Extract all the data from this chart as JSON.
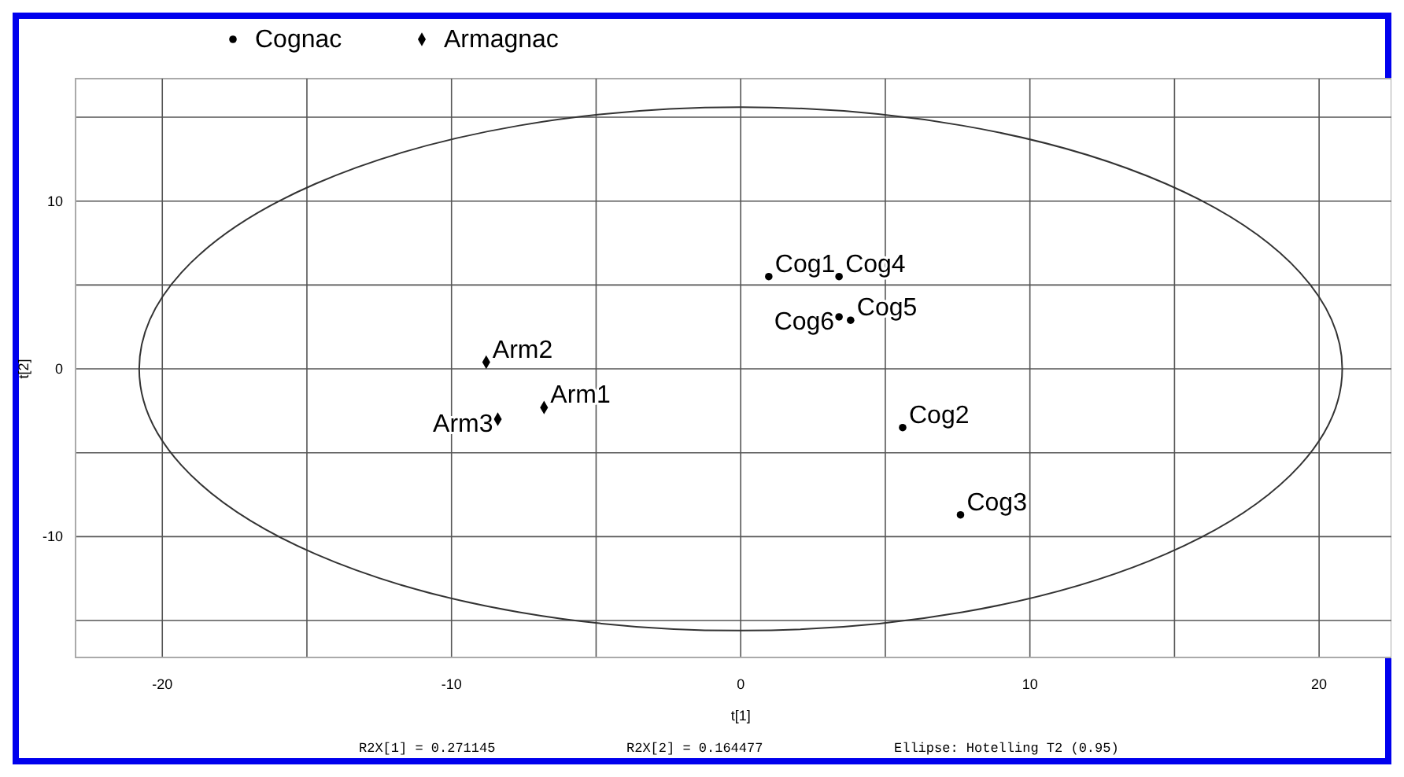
{
  "chart_data": {
    "type": "scatter",
    "xlabel": "t[1]",
    "ylabel": "t[2]",
    "xlim": [
      -23,
      22.5
    ],
    "ylim": [
      -17.2,
      17.3
    ],
    "xticks": [
      -20,
      {
        "value": -15,
        "label": null
      },
      -10,
      {
        "value": -5,
        "label": null
      },
      0,
      {
        "value": 5,
        "label": null
      },
      10,
      {
        "value": 15,
        "label": null
      },
      20
    ],
    "yticks": [
      {
        "value": -15,
        "label": null
      },
      -10,
      {
        "value": -5,
        "label": null
      },
      0,
      {
        "value": 5,
        "label": null
      },
      10,
      {
        "value": 15,
        "label": null
      }
    ],
    "grid": true,
    "legend": "top",
    "series": [
      {
        "name": "Cognac",
        "color": "#000000",
        "marker": "circle",
        "x": [
          0.97,
          5.6,
          7.6,
          3.4,
          3.8,
          3.4
        ],
        "values": [
          5.5,
          -3.5,
          -8.7,
          5.5,
          2.9,
          3.1
        ]
      },
      {
        "name": "Armagnac",
        "color": "#000000",
        "marker": "diamond",
        "x": [
          -6.8,
          -8.8,
          -8.4
        ],
        "values": [
          -2.3,
          0.4,
          -3.0
        ]
      }
    ],
    "annotations": [
      {
        "text": "Cog1",
        "x": 0.97,
        "y": 5.5
      },
      {
        "text": "Cog2",
        "x": 5.6,
        "y": -3.5
      },
      {
        "text": "Cog3",
        "x": 7.6,
        "y": -8.7
      },
      {
        "text": "Cog4",
        "x": 3.4,
        "y": 5.5
      },
      {
        "text": "Cog5",
        "x": 3.8,
        "y": 2.9
      },
      {
        "text": "Cog6",
        "x": 3.4,
        "y": 3.1
      },
      {
        "text": "Arm1",
        "x": -6.8,
        "y": -2.3
      },
      {
        "text": "Arm2",
        "x": -8.8,
        "y": 0.4
      },
      {
        "text": "Arm3",
        "x": -8.4,
        "y": -3.0
      },
      "R2X[1] = 0.271145",
      "R2X[2] = 0.164477",
      "Ellipse: Hotelling T2 (0.95)"
    ]
  }
}
